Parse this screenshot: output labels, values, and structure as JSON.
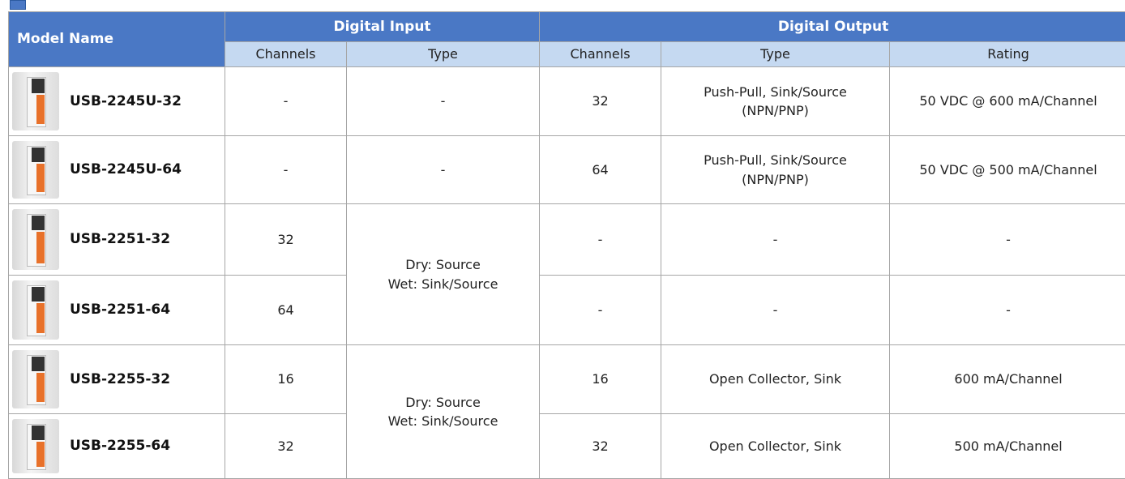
{
  "table": {
    "header": {
      "model_name": "Model Name",
      "groups": [
        "Digital Input",
        "Digital Output"
      ],
      "columns": [
        "Channels",
        "Type",
        "Channels",
        "Type",
        "Rating"
      ]
    },
    "rows": [
      {
        "model": "USB-2245U-32",
        "di_channels": "-",
        "di_type": "-",
        "do_channels": "32",
        "do_type": "Push-Pull, Sink/Source\n(NPN/PNP)",
        "rating": "50 VDC @ 600 mA/Channel"
      },
      {
        "model": "USB-2245U-64",
        "di_channels": "-",
        "di_type": "-",
        "do_channels": "64",
        "do_type": "Push-Pull, Sink/Source\n(NPN/PNP)",
        "rating": "50 VDC @ 500 mA/Channel"
      },
      {
        "model": "USB-2251-32",
        "di_channels": "32",
        "di_type": "Dry: Source\nWet: Sink/Source",
        "do_channels": "-",
        "do_type": "-",
        "rating": "-"
      },
      {
        "model": "USB-2251-64",
        "di_channels": "64",
        "do_channels": "-",
        "do_type": "-",
        "rating": "-"
      },
      {
        "model": "USB-2255-32",
        "di_channels": "16",
        "di_type": "Dry: Source\nWet: Sink/Source",
        "do_channels": "16",
        "do_type": "Open Collector, Sink",
        "rating": "600 mA/Channel"
      },
      {
        "model": "USB-2255-64",
        "di_channels": "32",
        "do_channels": "32",
        "do_type": "Open Collector, Sink",
        "rating": "500 mA/Channel"
      }
    ]
  }
}
